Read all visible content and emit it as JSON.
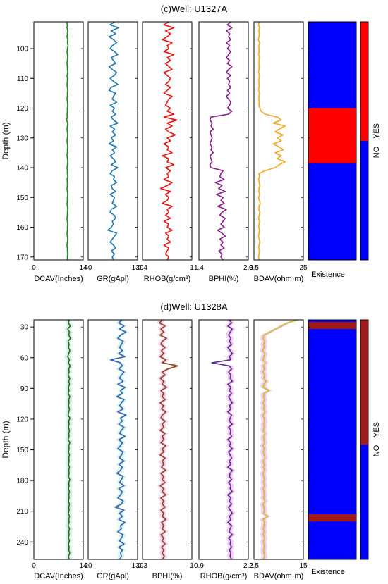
{
  "chart_data": [
    {
      "type": "line",
      "title": "(c)Well: U1327A",
      "ylabel": "Depth (m)",
      "ylim": [
        91,
        171
      ],
      "yticks": [
        100,
        110,
        120,
        130,
        140,
        150,
        160,
        170
      ],
      "depth_step": 1,
      "tracks": [
        {
          "xlabel": "DCAV(Inches)",
          "xlim": [
            0,
            14
          ],
          "xticks_labels": [
            "0",
            "14"
          ],
          "color": "#1a8a1a",
          "values": [
            9.3,
            9.5,
            9.4,
            9.6,
            9.5,
            9.4,
            9.6,
            9.5,
            9.7,
            9.5,
            9.4,
            9.5,
            9.6,
            9.5,
            9.4,
            9.5,
            9.5,
            9.6,
            9.4,
            9.5,
            9.5,
            9.4,
            9.5,
            9.6,
            9.5,
            9.5,
            9.4,
            9.5,
            9.6,
            9.5,
            9.5,
            9.4,
            9.5,
            9.3,
            9.6,
            9.5,
            9.4,
            9.5,
            9.6,
            9.5,
            9.4,
            9.5,
            9.6,
            9.5,
            9.5,
            9.4,
            9.5,
            9.6,
            9.5,
            9.4,
            9.5,
            9.5,
            9.6,
            9.4,
            9.5,
            9.5,
            9.4,
            9.5,
            9.6,
            9.5,
            9.5,
            9.4,
            9.5,
            9.6,
            9.5,
            9.5,
            9.4,
            9.5,
            9.6,
            9.5,
            9.5,
            9.4,
            9.5,
            9.6,
            9.5,
            9.4,
            9.5,
            9.5,
            9.6,
            9.5,
            9.5
          ]
        },
        {
          "xlabel": "GR(gApl)",
          "xlim": [
            40,
            130
          ],
          "xticks_labels": [
            "40",
            "130"
          ],
          "color": "#1f77b4",
          "values": [
            88,
            80,
            95,
            82,
            90,
            78,
            86,
            92,
            84,
            80,
            88,
            94,
            82,
            86,
            90,
            78,
            84,
            92,
            88,
            80,
            86,
            94,
            82,
            78,
            90,
            86,
            84,
            92,
            80,
            88,
            84,
            90,
            82,
            86,
            94,
            80,
            88,
            84,
            90,
            82,
            86,
            78,
            92,
            84,
            88,
            80,
            86,
            90,
            82,
            94,
            84,
            80,
            88,
            86,
            92,
            82,
            84,
            90,
            80,
            88,
            86,
            84,
            92,
            82,
            80,
            88,
            90,
            84,
            86,
            82,
            76,
            92,
            88,
            84,
            80,
            86,
            90,
            82,
            88,
            84,
            86
          ]
        },
        {
          "xlabel": "RHOB(g/cm³)",
          "xlim": [
            0.4,
            1
          ],
          "xticks_labels": [
            "0.4",
            "1"
          ],
          "color": "#e8110f",
          "values": [
            0.72,
            0.66,
            0.78,
            0.68,
            0.74,
            0.7,
            0.64,
            0.76,
            0.7,
            0.72,
            0.66,
            0.78,
            0.7,
            0.74,
            0.68,
            0.72,
            0.76,
            0.66,
            0.7,
            0.74,
            0.72,
            0.68,
            0.74,
            0.7,
            0.66,
            0.76,
            0.72,
            0.7,
            0.68,
            0.74,
            0.7,
            0.78,
            0.66,
            0.82,
            0.7,
            0.76,
            0.68,
            0.72,
            0.8,
            0.7,
            0.74,
            0.66,
            0.72,
            0.7,
            0.76,
            0.64,
            0.72,
            0.7,
            0.78,
            0.68,
            0.74,
            0.7,
            0.72,
            0.66,
            0.76,
            0.7,
            0.62,
            0.74,
            0.68,
            0.72,
            0.7,
            0.64,
            0.76,
            0.7,
            0.72,
            0.68,
            0.74,
            0.66,
            0.72,
            0.7,
            0.76,
            0.68,
            0.72,
            0.7,
            0.74,
            0.66,
            0.72,
            0.7,
            0.68,
            0.72,
            0.7
          ]
        },
        {
          "xlabel": "BPHI(%)",
          "xlim": [
            1.4,
            2.3
          ],
          "xticks_labels": [
            "1.4",
            "2.3"
          ],
          "color": "#8b1a8b",
          "values": [
            1.98,
            1.92,
            2.0,
            1.9,
            1.96,
            1.94,
            1.98,
            1.9,
            1.96,
            1.92,
            1.98,
            1.94,
            1.9,
            1.96,
            1.92,
            2.0,
            1.94,
            1.9,
            1.98,
            1.92,
            1.96,
            1.94,
            1.98,
            1.92,
            1.96,
            1.9,
            1.94,
            1.98,
            1.96,
            1.92,
            2.0,
            1.94,
            1.62,
            1.6,
            1.64,
            1.62,
            1.66,
            1.6,
            1.62,
            1.64,
            1.62,
            1.6,
            1.64,
            1.62,
            1.66,
            1.6,
            1.62,
            1.64,
            1.6,
            1.62,
            1.84,
            1.8,
            1.78,
            1.86,
            1.7,
            1.82,
            1.76,
            1.88,
            1.72,
            1.84,
            1.8,
            1.86,
            1.74,
            1.9,
            1.82,
            1.78,
            1.88,
            1.84,
            1.8,
            1.86,
            1.74,
            1.82,
            1.88,
            1.78,
            1.84,
            1.8,
            1.86,
            1.76,
            1.82,
            1.8,
            1.84
          ]
        },
        {
          "xlabel": "BDAV(ohm·m)",
          "xlim": [
            0.5,
            25
          ],
          "xticks_labels": [
            "0.5",
            "25"
          ],
          "color": "#f5a623",
          "values": [
            3.0,
            2.8,
            3.2,
            2.9,
            3.1,
            3.0,
            2.7,
            3.3,
            2.9,
            3.0,
            3.1,
            2.8,
            3.2,
            3.0,
            2.9,
            3.1,
            3.0,
            2.8,
            3.2,
            3.0,
            2.9,
            3.1,
            3.0,
            2.8,
            3.2,
            3.0,
            2.9,
            3.1,
            3.0,
            3.4,
            4.0,
            6.0,
            12.0,
            14.0,
            10.0,
            16.0,
            13.0,
            11.0,
            15.0,
            12.0,
            14.0,
            10.0,
            13.0,
            15.0,
            11.0,
            14.0,
            12.0,
            16.0,
            13.0,
            11.0,
            6.0,
            3.0,
            3.2,
            2.8,
            3.1,
            3.4,
            2.9,
            3.0,
            3.3,
            2.8,
            3.2,
            3.6,
            3.0,
            2.9,
            3.4,
            3.1,
            2.8,
            3.3,
            3.0,
            2.9,
            3.2,
            3.0,
            2.8,
            3.1,
            3.4,
            3.0,
            2.9,
            3.2,
            3.0,
            2.8,
            3.0
          ]
        }
      ],
      "existence": {
        "xlabel": "Existence",
        "labels": [
          "NO",
          "YES"
        ],
        "no_color": "#0000ff",
        "yes_color": "#ff0000",
        "hydrate_intervals": [
          [
            120,
            138.5
          ]
        ],
        "strip_yes_interval": [
          91,
          131
        ]
      }
    },
    {
      "type": "line",
      "title": "(d)Well: U1328A",
      "ylabel": "Depth (m)",
      "ylim": [
        23,
        257
      ],
      "yticks": [
        30,
        60,
        90,
        120,
        150,
        180,
        210,
        240
      ],
      "depth_step": 3,
      "tracks": [
        {
          "xlabel": "DCAV(Inches)",
          "xlim": [
            0,
            14
          ],
          "xticks_labels": [
            "0",
            "14"
          ],
          "color": "#3a5a16",
          "shade": "#c8f5e6",
          "values": [
            10.0,
            9.8,
            10.3,
            9.6,
            10.1,
            9.9,
            10.4,
            9.7,
            10.0,
            9.8,
            10.2,
            9.9,
            9.6,
            10.1,
            9.8,
            10.3,
            9.9,
            10.0,
            9.7,
            10.2,
            9.9,
            10.1,
            9.8,
            10.0,
            9.7,
            10.2,
            9.9,
            10.0,
            9.8,
            10.1,
            9.9,
            9.7,
            10.2,
            9.9,
            10.0,
            9.8,
            10.1,
            9.9,
            10.0,
            9.7,
            10.2,
            9.9,
            10.0,
            9.8,
            10.1,
            9.9,
            10.0,
            9.8,
            10.1,
            9.9,
            10.0,
            9.8,
            10.2,
            9.9,
            10.0,
            9.8,
            10.1,
            9.9,
            10.0,
            9.8,
            10.1,
            9.9,
            10.0,
            9.8,
            10.1,
            9.9,
            10.0,
            9.7,
            10.1,
            9.9,
            10.0,
            9.8,
            10.1,
            9.8,
            10.0,
            9.9,
            10.2,
            9.8,
            10.0
          ]
        },
        {
          "xlabel": "GR(gApl)",
          "xlim": [
            20,
            130
          ],
          "xticks_labels": [
            "20",
            "130"
          ],
          "color": "#3b5bb5",
          "shade": "#c8f5e6",
          "values": [
            95,
            88,
            100,
            90,
            104,
            92,
            86,
            98,
            94,
            90,
            96,
            88,
            102,
            70,
            92,
            96,
            88,
            100,
            94,
            90,
            98,
            86,
            102,
            92,
            96,
            84,
            100,
            94,
            90,
            98,
            86,
            104,
            92,
            96,
            88,
            100,
            94,
            90,
            102,
            88,
            96,
            92,
            86,
            98,
            94,
            90,
            100,
            88,
            96,
            92,
            84,
            98,
            94,
            90,
            100,
            88,
            96,
            92,
            86,
            98,
            94,
            80,
            100,
            90,
            96,
            88,
            102,
            92,
            94,
            86,
            98,
            94,
            90,
            100,
            88,
            96,
            92,
            94,
            90
          ]
        },
        {
          "xlabel": "BPHI(%)",
          "xlim": [
            0.3,
            1
          ],
          "xticks_labels": [
            "0.3",
            "1"
          ],
          "color": "#8b4513",
          "shade": "#f5c8f0",
          "values": [
            0.58,
            0.54,
            0.62,
            0.56,
            0.6,
            0.55,
            0.64,
            0.58,
            0.56,
            0.62,
            0.57,
            0.6,
            0.55,
            0.63,
            0.58,
            0.8,
            0.66,
            0.58,
            0.62,
            0.55,
            0.6,
            0.58,
            0.64,
            0.56,
            0.6,
            0.58,
            0.62,
            0.55,
            0.6,
            0.57,
            0.63,
            0.58,
            0.56,
            0.62,
            0.58,
            0.6,
            0.55,
            0.62,
            0.58,
            0.6,
            0.56,
            0.63,
            0.58,
            0.6,
            0.55,
            0.62,
            0.58,
            0.6,
            0.57,
            0.63,
            0.56,
            0.6,
            0.58,
            0.62,
            0.55,
            0.6,
            0.58,
            0.63,
            0.56,
            0.6,
            0.58,
            0.62,
            0.56,
            0.6,
            0.58,
            0.63,
            0.57,
            0.6,
            0.58,
            0.62,
            0.56,
            0.6,
            0.58,
            0.62,
            0.57,
            0.6,
            0.58,
            0.61,
            0.58
          ]
        },
        {
          "xlabel": "RHOB(g/cm³)",
          "xlim": [
            0.9,
            2.2
          ],
          "xticks_labels": [
            "0.9",
            "2.2"
          ],
          "color": "#5b2a8c",
          "shade": "#f5c8f0",
          "values": [
            1.7,
            1.76,
            1.66,
            1.78,
            1.72,
            1.68,
            1.74,
            1.7,
            1.76,
            1.66,
            1.72,
            1.78,
            1.7,
            1.74,
            1.24,
            1.7,
            1.76,
            1.68,
            1.74,
            1.72,
            1.78,
            1.66,
            1.74,
            1.7,
            1.76,
            1.68,
            1.72,
            1.78,
            1.7,
            1.74,
            1.66,
            1.76,
            1.72,
            1.7,
            1.78,
            1.68,
            1.74,
            1.72,
            1.76,
            1.66,
            1.74,
            1.7,
            1.78,
            1.68,
            1.72,
            1.76,
            1.7,
            1.74,
            1.66,
            1.78,
            1.72,
            1.7,
            1.76,
            1.68,
            1.74,
            1.72,
            1.78,
            1.66,
            1.74,
            1.7,
            1.76,
            1.68,
            1.72,
            1.78,
            1.7,
            1.74,
            1.66,
            1.76,
            1.72,
            1.7,
            1.78,
            1.68,
            1.74,
            1.72,
            1.76,
            1.7,
            1.74,
            1.72,
            1.76
          ]
        },
        {
          "xlabel": "BDAV(ohm·m)",
          "xlim": [
            2.5,
            15
          ],
          "xticks_labels": [
            "2.5",
            "15"
          ],
          "color": "#c8c01e",
          "shade": "#f5c8f0",
          "values": [
            13.5,
            11.0,
            9.5,
            8.0,
            6.5,
            5.0,
            4.8,
            5.2,
            4.9,
            5.1,
            4.7,
            5.3,
            5.0,
            4.8,
            5.4,
            4.9,
            5.1,
            4.8,
            5.2,
            4.9,
            5.6,
            5.0,
            4.8,
            6.4,
            5.0,
            4.9,
            5.2,
            4.8,
            5.1,
            4.9,
            5.3,
            4.8,
            5.0,
            5.2,
            4.9,
            5.1,
            4.8,
            5.3,
            4.9,
            5.0,
            5.2,
            4.8,
            5.1,
            4.9,
            5.0,
            5.3,
            4.8,
            5.1,
            4.9,
            5.2,
            4.8,
            5.0,
            5.1,
            4.9,
            5.2,
            4.8,
            5.0,
            5.1,
            4.9,
            5.3,
            4.8,
            5.0,
            5.1,
            4.9,
            6.0,
            4.8,
            5.2,
            5.0,
            4.9,
            5.1,
            4.8,
            5.2,
            4.9,
            5.0,
            5.1,
            4.9,
            5.0,
            5.2,
            4.9
          ]
        }
      ],
      "existence": {
        "xlabel": "Existence",
        "labels": [
          "NO",
          "YES"
        ],
        "no_color": "#0000ff",
        "yes_color": "#a01a1a",
        "hydrate_intervals": [
          [
            25,
            32
          ],
          [
            213,
            220
          ]
        ],
        "strip_yes_interval": [
          23,
          145
        ]
      }
    }
  ]
}
